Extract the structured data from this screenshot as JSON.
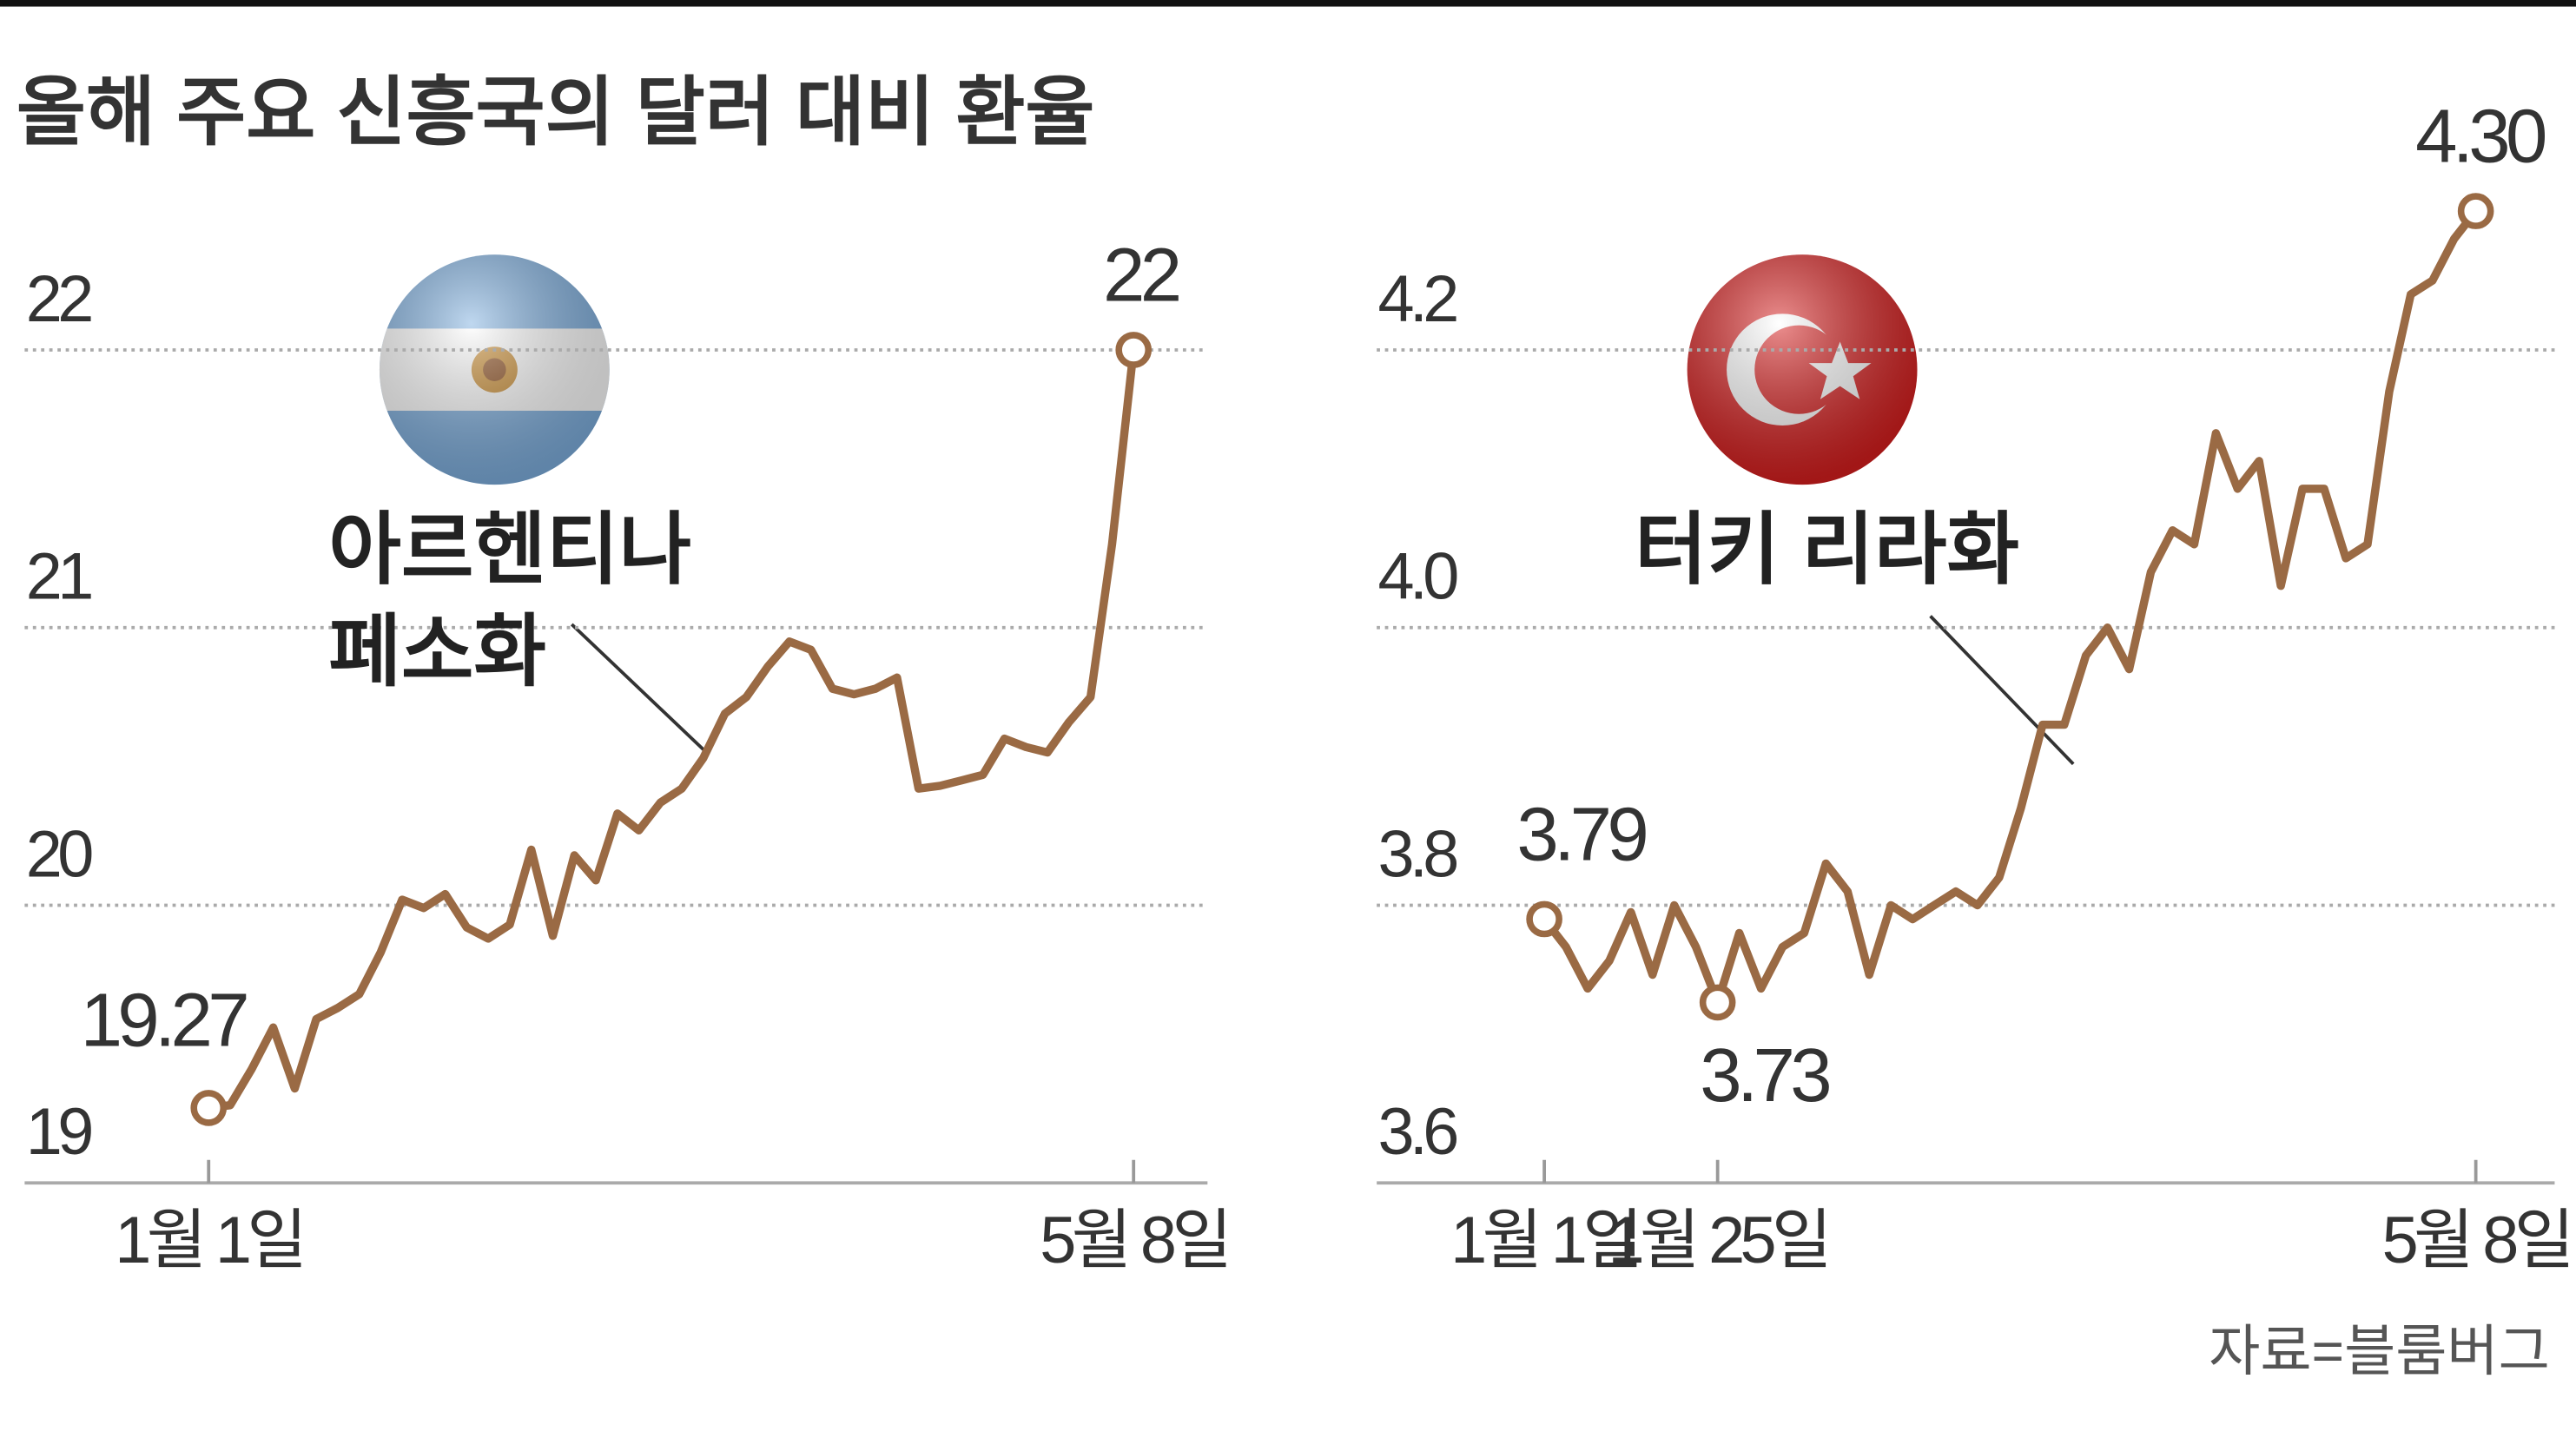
{
  "title": "올해 주요 신흥국의 달러 대비 환율",
  "source": "자료=블룸버그",
  "chart_data": [
    {
      "type": "line",
      "series": [
        {
          "name": "아르헨티나 페소화",
          "color": "#9a6a44",
          "values": [
            19.27,
            19.28,
            19.41,
            19.56,
            19.34,
            19.59,
            19.63,
            19.68,
            19.83,
            20.02,
            19.99,
            20.04,
            19.92,
            19.88,
            19.93,
            20.2,
            19.89,
            20.18,
            20.09,
            20.33,
            20.27,
            20.37,
            20.42,
            20.53,
            20.69,
            20.75,
            20.86,
            20.95,
            20.92,
            20.78,
            20.76,
            20.78,
            20.82,
            20.42,
            20.43,
            20.45,
            20.47,
            20.6,
            20.57,
            20.55,
            20.66,
            20.75,
            21.3,
            22
          ],
          "value_labels": [
            "19.27",
            null,
            null,
            null,
            null,
            null,
            null,
            null,
            null,
            null,
            null,
            null,
            null,
            null,
            null,
            null,
            null,
            null,
            null,
            null,
            null,
            null,
            null,
            null,
            null,
            null,
            null,
            null,
            null,
            null,
            null,
            null,
            null,
            null,
            null,
            null,
            null,
            null,
            null,
            null,
            null,
            null,
            null,
            "22"
          ]
        }
      ],
      "categories": [
        "1월 1일",
        null,
        null,
        null,
        null,
        null,
        null,
        null,
        null,
        null,
        null,
        null,
        null,
        null,
        null,
        null,
        null,
        null,
        null,
        null,
        null,
        null,
        null,
        null,
        null,
        null,
        null,
        null,
        null,
        null,
        null,
        null,
        null,
        null,
        null,
        null,
        null,
        null,
        null,
        null,
        null,
        null,
        null,
        "5월 8일"
      ],
      "ylim": [
        19,
        22.4
      ],
      "yticks": [
        19,
        20,
        21,
        22
      ],
      "grid": true
    },
    {
      "type": "line",
      "series": [
        {
          "name": "터키 리라화",
          "color": "#9a6a44",
          "values": [
            3.79,
            3.77,
            3.74,
            3.76,
            3.795,
            3.75,
            3.8,
            3.77,
            3.73,
            3.78,
            3.74,
            3.77,
            3.78,
            3.83,
            3.81,
            3.75,
            3.8,
            3.79,
            3.8,
            3.81,
            3.8,
            3.82,
            3.87,
            3.93,
            3.93,
            3.98,
            4.0,
            3.97,
            4.04,
            4.07,
            4.06,
            4.14,
            4.1,
            4.12,
            4.03,
            4.1,
            4.1,
            4.05,
            4.06,
            4.17,
            4.24,
            4.25,
            4.28,
            4.3
          ],
          "value_labels": [
            "3.79",
            null,
            null,
            null,
            null,
            null,
            null,
            null,
            "3.73",
            null,
            null,
            null,
            null,
            null,
            null,
            null,
            null,
            null,
            null,
            null,
            null,
            null,
            null,
            null,
            null,
            null,
            null,
            null,
            null,
            null,
            null,
            null,
            null,
            null,
            null,
            null,
            null,
            null,
            null,
            null,
            null,
            null,
            null,
            "4.30"
          ]
        }
      ],
      "categories": [
        "1월 1일",
        null,
        null,
        null,
        null,
        null,
        null,
        null,
        "1월 25일",
        null,
        null,
        null,
        null,
        null,
        null,
        null,
        null,
        null,
        null,
        null,
        null,
        null,
        null,
        null,
        null,
        null,
        null,
        null,
        null,
        null,
        null,
        null,
        null,
        null,
        null,
        null,
        null,
        null,
        null,
        null,
        null,
        null,
        null,
        "5월 8일"
      ],
      "ylim": [
        3.6,
        4.4
      ],
      "yticks": [
        3.6,
        3.8,
        {
          "value": 4,
          "label": "4.0"
        },
        4.2
      ],
      "grid": true
    }
  ]
}
